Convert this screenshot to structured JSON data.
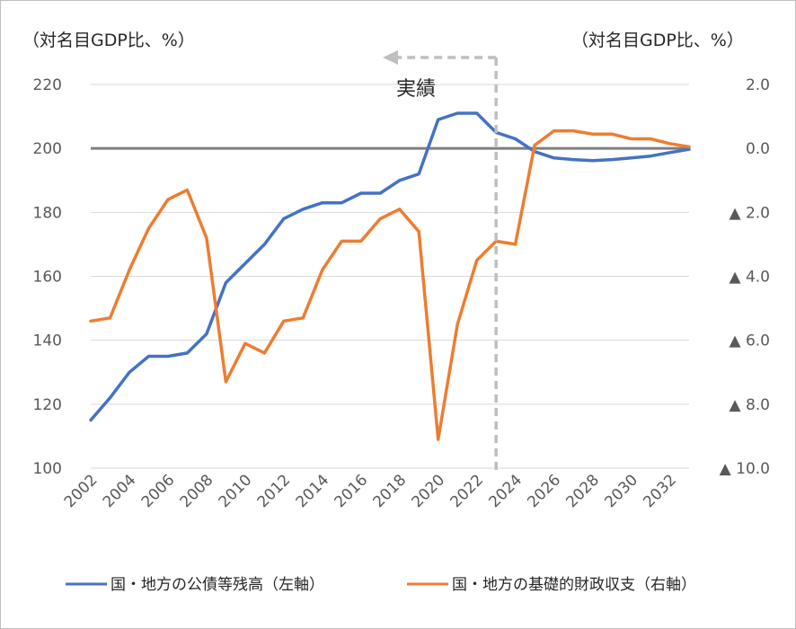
{
  "chart_data": {
    "type": "line",
    "left_axis_unit": "（対名目GDP比、%）",
    "right_axis_unit": "（対名目GDP比、%）",
    "annotation": "実績",
    "y_left": {
      "ylim": [
        100,
        220
      ],
      "ticks": [
        100,
        120,
        140,
        160,
        180,
        200,
        220
      ],
      "tick_labels": [
        "100",
        "120",
        "140",
        "160",
        "180",
        "200",
        "220"
      ]
    },
    "y_right": {
      "ylim": [
        -10,
        2
      ],
      "ticks": [
        -10,
        -8,
        -6,
        -4,
        -2,
        0,
        2
      ],
      "tick_labels": [
        "▲ 10.0",
        "▲ 8.0",
        "▲ 6.0",
        "▲ 4.0",
        "▲ 2.0",
        "0.0",
        "2.0"
      ]
    },
    "x_tick_labels": [
      "2002",
      "2004",
      "2006",
      "2008",
      "2010",
      "2012",
      "2014",
      "2016",
      "2018",
      "2020",
      "2022",
      "2024",
      "2026",
      "2028",
      "2030",
      "2032"
    ],
    "x": [
      2002,
      2003,
      2004,
      2005,
      2006,
      2007,
      2008,
      2009,
      2010,
      2011,
      2012,
      2013,
      2014,
      2015,
      2016,
      2017,
      2018,
      2019,
      2020,
      2021,
      2022,
      2023,
      2024,
      2025,
      2026,
      2027,
      2028,
      2029,
      2030,
      2031,
      2032,
      2033
    ],
    "actual_end_x": 2023,
    "grid": true,
    "legend_position": "bottom",
    "series": [
      {
        "name": "国・地方の公債等残高（左軸）",
        "axis": "left",
        "color": "#4472C4",
        "values": [
          115,
          122,
          130,
          135,
          135,
          136,
          142,
          158,
          164,
          170,
          178,
          181,
          183,
          183,
          186,
          186,
          190,
          192,
          209,
          211,
          211,
          205,
          203,
          199,
          197,
          196.5,
          196.2,
          196.5,
          197,
          197.6,
          198.7,
          199.7
        ]
      },
      {
        "name": "国・地方の基礎的財政収支（右軸）",
        "axis": "right",
        "color": "#ED7D31",
        "values": [
          -5.4,
          -5.3,
          -3.8,
          -2.5,
          -1.6,
          -1.3,
          -2.8,
          -7.3,
          -6.1,
          -6.4,
          -5.4,
          -5.3,
          -3.8,
          -2.9,
          -2.9,
          -2.2,
          -1.9,
          -2.6,
          -9.1,
          -5.5,
          -3.5,
          -2.9,
          -3.0,
          0.1,
          0.55,
          0.55,
          0.45,
          0.45,
          0.3,
          0.3,
          0.15,
          0.05
        ]
      }
    ]
  }
}
